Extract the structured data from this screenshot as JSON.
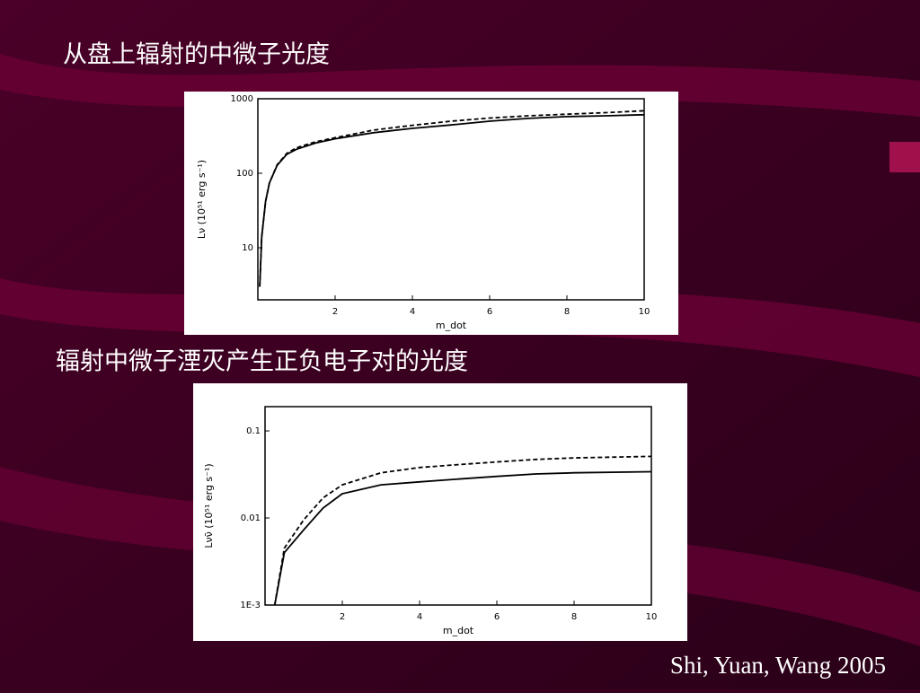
{
  "chart_data": [
    {
      "type": "line",
      "title": "从盘上辐射的中微子光度",
      "xlabel": "m_dot",
      "ylabel": "Lν (10⁵¹ erg s⁻¹)",
      "x": [
        0.05,
        0.1,
        0.2,
        0.3,
        0.5,
        0.75,
        1,
        1.5,
        2,
        3,
        4,
        5,
        6,
        7,
        8,
        9,
        10
      ],
      "series": [
        {
          "color": "#000000",
          "dashed": false,
          "values": [
            3,
            14,
            42,
            74,
            128,
            180,
            210,
            255,
            290,
            350,
            400,
            445,
            500,
            545,
            575,
            590,
            610
          ]
        },
        {
          "color": "#000000",
          "dashed": true,
          "values": [
            3,
            14,
            42,
            74,
            130,
            185,
            220,
            265,
            300,
            380,
            440,
            500,
            550,
            590,
            620,
            650,
            690
          ]
        }
      ],
      "xlim": [
        0,
        10
      ],
      "xticks": [
        2,
        4,
        6,
        8,
        10
      ],
      "ylim": [
        2,
        1000
      ],
      "yticks": [
        10,
        100,
        1000
      ],
      "yscale": "log"
    },
    {
      "type": "line",
      "title": "辐射中微子湮灭产生正负电子对的光度",
      "xlabel": "m_dot",
      "ylabel": "Lνν̄ (10⁵¹ erg s⁻¹)",
      "x": [
        0.25,
        0.5,
        1,
        1.5,
        2,
        3,
        4,
        5,
        6,
        7,
        8,
        10
      ],
      "series": [
        {
          "color": "#000000",
          "dashed": false,
          "values": [
            0.001,
            0.004,
            0.0073,
            0.013,
            0.019,
            0.024,
            0.026,
            0.028,
            0.03,
            0.032,
            0.033,
            0.034
          ]
        },
        {
          "color": "#000000",
          "dashed": true,
          "values": [
            0.001,
            0.0045,
            0.0095,
            0.017,
            0.024,
            0.033,
            0.038,
            0.041,
            0.044,
            0.047,
            0.049,
            0.051
          ]
        }
      ],
      "xlim": [
        0,
        10
      ],
      "xticks": [
        2,
        4,
        6,
        8,
        10
      ],
      "ylim": [
        0.001,
        0.19
      ],
      "yticks": [
        {
          "value": 0.001,
          "label": "1E-3"
        },
        0.01,
        0.1
      ],
      "yscale": "log"
    }
  ],
  "credit": "Shi, Yuan, Wang 2005"
}
